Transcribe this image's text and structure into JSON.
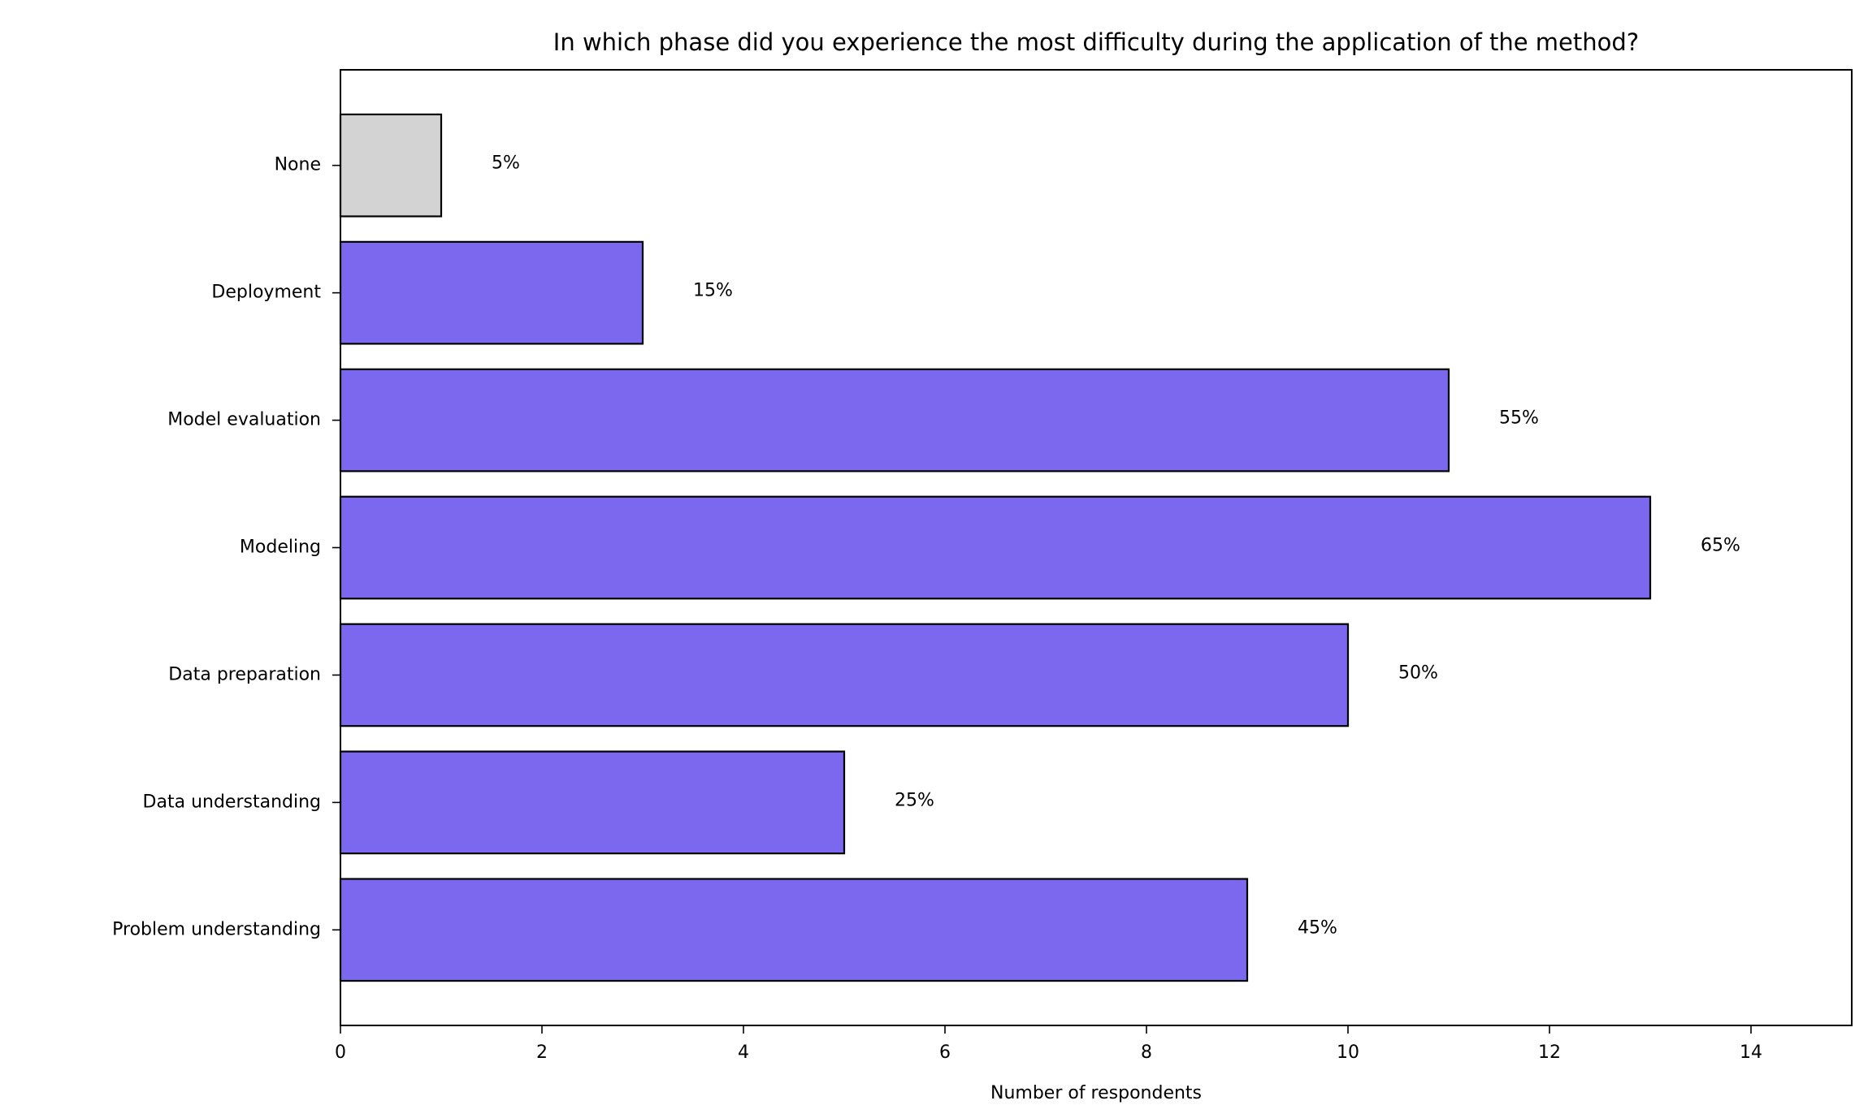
{
  "chart_data": {
    "type": "bar",
    "orientation": "horizontal",
    "title": "In which phase did you experience the most difficulty during the application of the method?",
    "xlabel": "Number of respondents",
    "ylabel": "",
    "xlim": [
      0,
      15
    ],
    "xticks": [
      "0",
      "2",
      "4",
      "6",
      "8",
      "10",
      "12",
      "14"
    ],
    "categories": [
      "Problem understanding",
      "Data understanding",
      "Data preparation",
      "Modeling",
      "Model evaluation",
      "Deployment",
      "None"
    ],
    "values": [
      9,
      5,
      10,
      13,
      11,
      3,
      1
    ],
    "data_labels": [
      "45%",
      "25%",
      "50%",
      "65%",
      "55%",
      "15%",
      "5%"
    ],
    "colors": [
      "#7b68ee",
      "#7b68ee",
      "#7b68ee",
      "#7b68ee",
      "#7b68ee",
      "#7b68ee",
      "#d3d3d3"
    ],
    "grid": false
  }
}
